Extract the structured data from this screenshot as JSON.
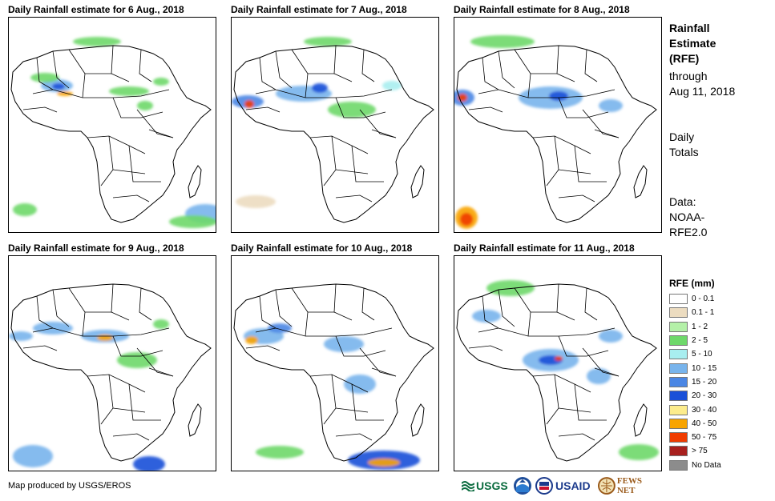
{
  "panels": [
    {
      "title": "Daily Rainfall estimate for 6 Aug., 2018"
    },
    {
      "title": "Daily Rainfall estimate for 7 Aug., 2018"
    },
    {
      "title": "Daily Rainfall estimate for 8 Aug., 2018"
    },
    {
      "title": "Daily Rainfall estimate for 9 Aug., 2018"
    },
    {
      "title": "Daily Rainfall estimate for 10 Aug., 2018"
    },
    {
      "title": "Daily Rainfall estimate for 11 Aug., 2018"
    }
  ],
  "sidebar": {
    "title_line1": "Rainfall",
    "title_line2": "Estimate",
    "title_line3": "(RFE)",
    "through_line1": "through",
    "through_line2": "Aug 11, 2018",
    "daily_line1": "Daily",
    "daily_line2": "Totals",
    "data_line1": "Data:",
    "data_line2": "NOAA-",
    "data_line3": "RFE2.0"
  },
  "legend": {
    "title": "RFE (mm)",
    "items": [
      {
        "label": "0 - 0.1",
        "color": "#ffffff"
      },
      {
        "label": "0.1 - 1",
        "color": "#ecdcc0"
      },
      {
        "label": "1 - 2",
        "color": "#b4f0a8"
      },
      {
        "label": "2 - 5",
        "color": "#6ed86a"
      },
      {
        "label": "5 - 10",
        "color": "#a8eef0"
      },
      {
        "label": "10 - 15",
        "color": "#78b4ec"
      },
      {
        "label": "15 - 20",
        "color": "#4a86e4"
      },
      {
        "label": "20 - 30",
        "color": "#1a50d8"
      },
      {
        "label": "30 - 40",
        "color": "#fcec8c"
      },
      {
        "label": "40 - 50",
        "color": "#f8a400"
      },
      {
        "label": "50 - 75",
        "color": "#f03c00"
      },
      {
        "label": "> 75",
        "color": "#a8201e"
      },
      {
        "label": "No Data",
        "color": "#8c8c8c"
      }
    ]
  },
  "footer": {
    "credit": "Map produced by USGS/EROS",
    "logos": [
      {
        "name": "usgs-logo",
        "text": "USGS"
      },
      {
        "name": "noaa-logo",
        "text": ""
      },
      {
        "name": "usaid-logo",
        "text": "USAID"
      },
      {
        "name": "fewsnet-logo",
        "text": "FEWS NET"
      }
    ]
  }
}
